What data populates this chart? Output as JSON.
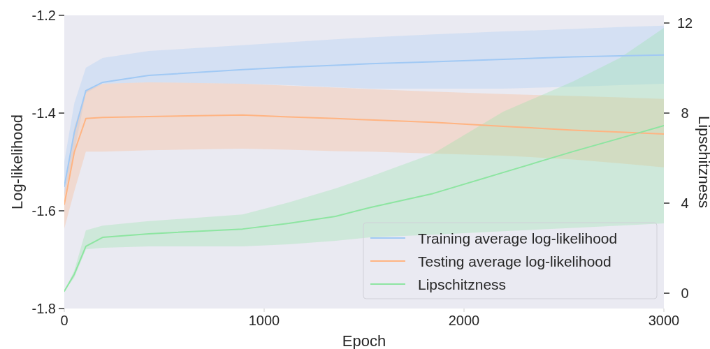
{
  "chart_data": {
    "type": "line",
    "xlabel": "Epoch",
    "ylabel": "Log-likelihood",
    "y2label": "Lipschitzness",
    "x": [
      0,
      50,
      108,
      192,
      423,
      892,
      1123,
      1357,
      1531,
      1846,
      2196,
      2545,
      2780,
      3000
    ],
    "series": [
      {
        "name": "Training average log-likelihood",
        "color": "#a1c9f4",
        "values": [
          -1.55,
          -1.44,
          -1.354,
          -1.337,
          -1.323,
          -1.311,
          -1.306,
          -1.302,
          -1.299,
          -1.295,
          -1.29,
          -1.285,
          -1.283,
          -1.281
        ],
        "upper": [
          -1.5,
          -1.38,
          -1.307,
          -1.287,
          -1.273,
          -1.261,
          -1.255,
          -1.249,
          -1.245,
          -1.239,
          -1.233,
          -1.228,
          -1.224,
          -1.221
        ],
        "lower": [
          -1.57,
          -1.48,
          -1.359,
          -1.34,
          -1.337,
          -1.34,
          -1.343,
          -1.347,
          -1.35,
          -1.35,
          -1.35,
          -1.346,
          -1.343,
          -1.34
        ]
      },
      {
        "name": "Testing average log-likelihood",
        "color": "#ffb482",
        "values": [
          -1.587,
          -1.48,
          -1.411,
          -1.409,
          -1.407,
          -1.404,
          -1.408,
          -1.411,
          -1.414,
          -1.419,
          -1.427,
          -1.435,
          -1.439,
          -1.443
        ],
        "upper": [
          -1.564,
          -1.43,
          -1.354,
          -1.34,
          -1.337,
          -1.34,
          -1.344,
          -1.348,
          -1.351,
          -1.356,
          -1.361,
          -1.365,
          -1.368,
          -1.371
        ],
        "lower": [
          -1.636,
          -1.56,
          -1.479,
          -1.479,
          -1.476,
          -1.473,
          -1.475,
          -1.478,
          -1.479,
          -1.483,
          -1.487,
          -1.495,
          -1.503,
          -1.511
        ]
      },
      {
        "name": "Lipschitzness",
        "color": "#8de5a1",
        "axis": "y2",
        "values": [
          0.09,
          0.84,
          2.08,
          2.48,
          2.64,
          2.85,
          3.1,
          3.41,
          3.81,
          4.43,
          5.36,
          6.29,
          6.88,
          7.44
        ],
        "upper": [
          0.09,
          1.0,
          2.79,
          3.0,
          3.2,
          3.5,
          4.03,
          4.65,
          5.18,
          6.2,
          8.06,
          9.4,
          10.45,
          11.78
        ],
        "lower": [
          0.09,
          0.7,
          1.95,
          2.02,
          2.08,
          2.08,
          2.17,
          2.33,
          2.48,
          2.6,
          2.75,
          2.9,
          3.0,
          3.1
        ]
      }
    ],
    "xlim": [
      0,
      3000
    ],
    "xticks": [
      0,
      1000,
      2000,
      3000
    ],
    "ylim": [
      -1.8,
      -1.2
    ],
    "yticks": [
      -1.8,
      -1.6,
      -1.4,
      -1.2
    ],
    "y2lim": [
      -0.68,
      12.34
    ],
    "y2ticks": [
      0,
      4,
      8,
      12
    ],
    "legend": "bottom right",
    "grid": false
  }
}
